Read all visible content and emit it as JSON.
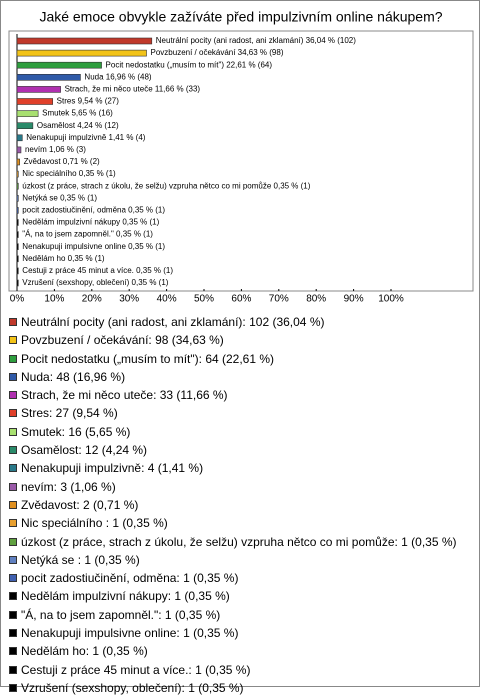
{
  "chart_data": {
    "type": "bar",
    "orientation": "horizontal",
    "title": "Jaké emoce obvykle zažíváte před impulzivním online nákupem?",
    "values": [
      36.04,
      34.63,
      22.61,
      16.96,
      11.66,
      9.54,
      5.65,
      4.24,
      1.41,
      1.06,
      0.71,
      0.35,
      0.35,
      0.35,
      0.35,
      0.35,
      0.35,
      0.35,
      0.35,
      0.35,
      0.35
    ],
    "value_labels": [
      "Neutrální pocity (ani radost, ani zklamání) 36,04 % (102)",
      "Povzbuzení / očekávání 34,63 % (98)",
      "Pocit nedostatku („musím to mít\") 22,61 % (64)",
      "Nuda 16,96 % (48)",
      "Strach, že mi něco uteče 11,66 % (33)",
      "Stres 9,54 % (27)",
      "Smutek 5,65 % (16)",
      "Osamělost 4,24 % (12)",
      "Nenakupuji impulzivně 1,41 % (4)",
      "nevím 1,06 % (3)",
      "Zvědavost 0,71 % (2)",
      "Nic speciálního  0,35 % (1)",
      "úzkost (z práce, strach z úkolu, že selžu) vzpruha nětco co mi pomůže 0,35 % (1)",
      "Netýká se  0,35 % (1)",
      "pocit zadostiučinění, odměna 0,35 % (1)",
      "Nedělám impulzivní nákupy 0,35 % (1)",
      "\"Á, na to jsem zapomněl.\" 0,35 % (1)",
      "Nenakupuji impulsivne online 0,35 % (1)",
      "Nedělám ho 0,35 % (1)",
      "Cestuji z práce 45 minut a více. 0,35 % (1)",
      "Vzrušení (sexshopy, oblečení) 0,35 % (1)"
    ],
    "legend_labels": [
      "Neutrální pocity (ani radost, ani zklamání): 102 (36,04 %)",
      "Povzbuzení / očekávání: 98 (34,63 %)",
      "Pocit nedostatku („musím to mít\"): 64 (22,61 %)",
      "Nuda: 48 (16,96 %)",
      "Strach, že mi něco uteče: 33 (11,66 %)",
      "Stres: 27 (9,54 %)",
      "Smutek: 16 (5,65 %)",
      "Osamělost: 12 (4,24 %)",
      "Nenakupuji impulzivně: 4 (1,41 %)",
      "nevím: 3 (1,06 %)",
      "Zvědavost: 2 (0,71 %)",
      "Nic speciálního : 1 (0,35 %)",
      "úzkost (z práce, strach z úkolu, že selžu) vzpruha nětco co mi pomůže: 1 (0,35 %)",
      "Netýká se : 1 (0,35 %)",
      "pocit zadostiučinění, odměna: 1 (0,35 %)",
      "Nedělám impulzivní nákupy: 1 (0,35 %)",
      "\"Á, na to jsem zapomněl.\": 1 (0,35 %)",
      "Nenakupuji impulsivne online: 1 (0,35 %)",
      "Nedělám ho: 1 (0,35 %)",
      "Cestuji z práce 45 minut a více.: 1 (0,35 %)",
      "Vzrušení (sexshopy, oblečení): 1 (0,35 %)"
    ],
    "colors": [
      "#c0392b",
      "#f2c318",
      "#2e9e3e",
      "#2f5aa8",
      "#b030b0",
      "#e0402a",
      "#a8e070",
      "#2a8a6a",
      "#2a7a8a",
      "#9a5aa8",
      "#e09020",
      "#e8a030",
      "#60a040",
      "#6080c0",
      "#4060b0",
      "#000000",
      "#000000",
      "#000000",
      "#000000",
      "#000000",
      "#000000"
    ],
    "xlim": [
      0,
      100
    ],
    "xticks": [
      {
        "value": 0,
        "label": "0%"
      },
      {
        "value": 10,
        "label": "10%"
      },
      {
        "value": 20,
        "label": "20%"
      },
      {
        "value": 30,
        "label": "30%"
      },
      {
        "value": 40,
        "label": "40%"
      },
      {
        "value": 50,
        "label": "50%"
      },
      {
        "value": 60,
        "label": "60%"
      },
      {
        "value": 70,
        "label": "70%"
      },
      {
        "value": 80,
        "label": "80%"
      },
      {
        "value": 90,
        "label": "90%"
      },
      {
        "value": 100,
        "label": "100%"
      }
    ]
  }
}
